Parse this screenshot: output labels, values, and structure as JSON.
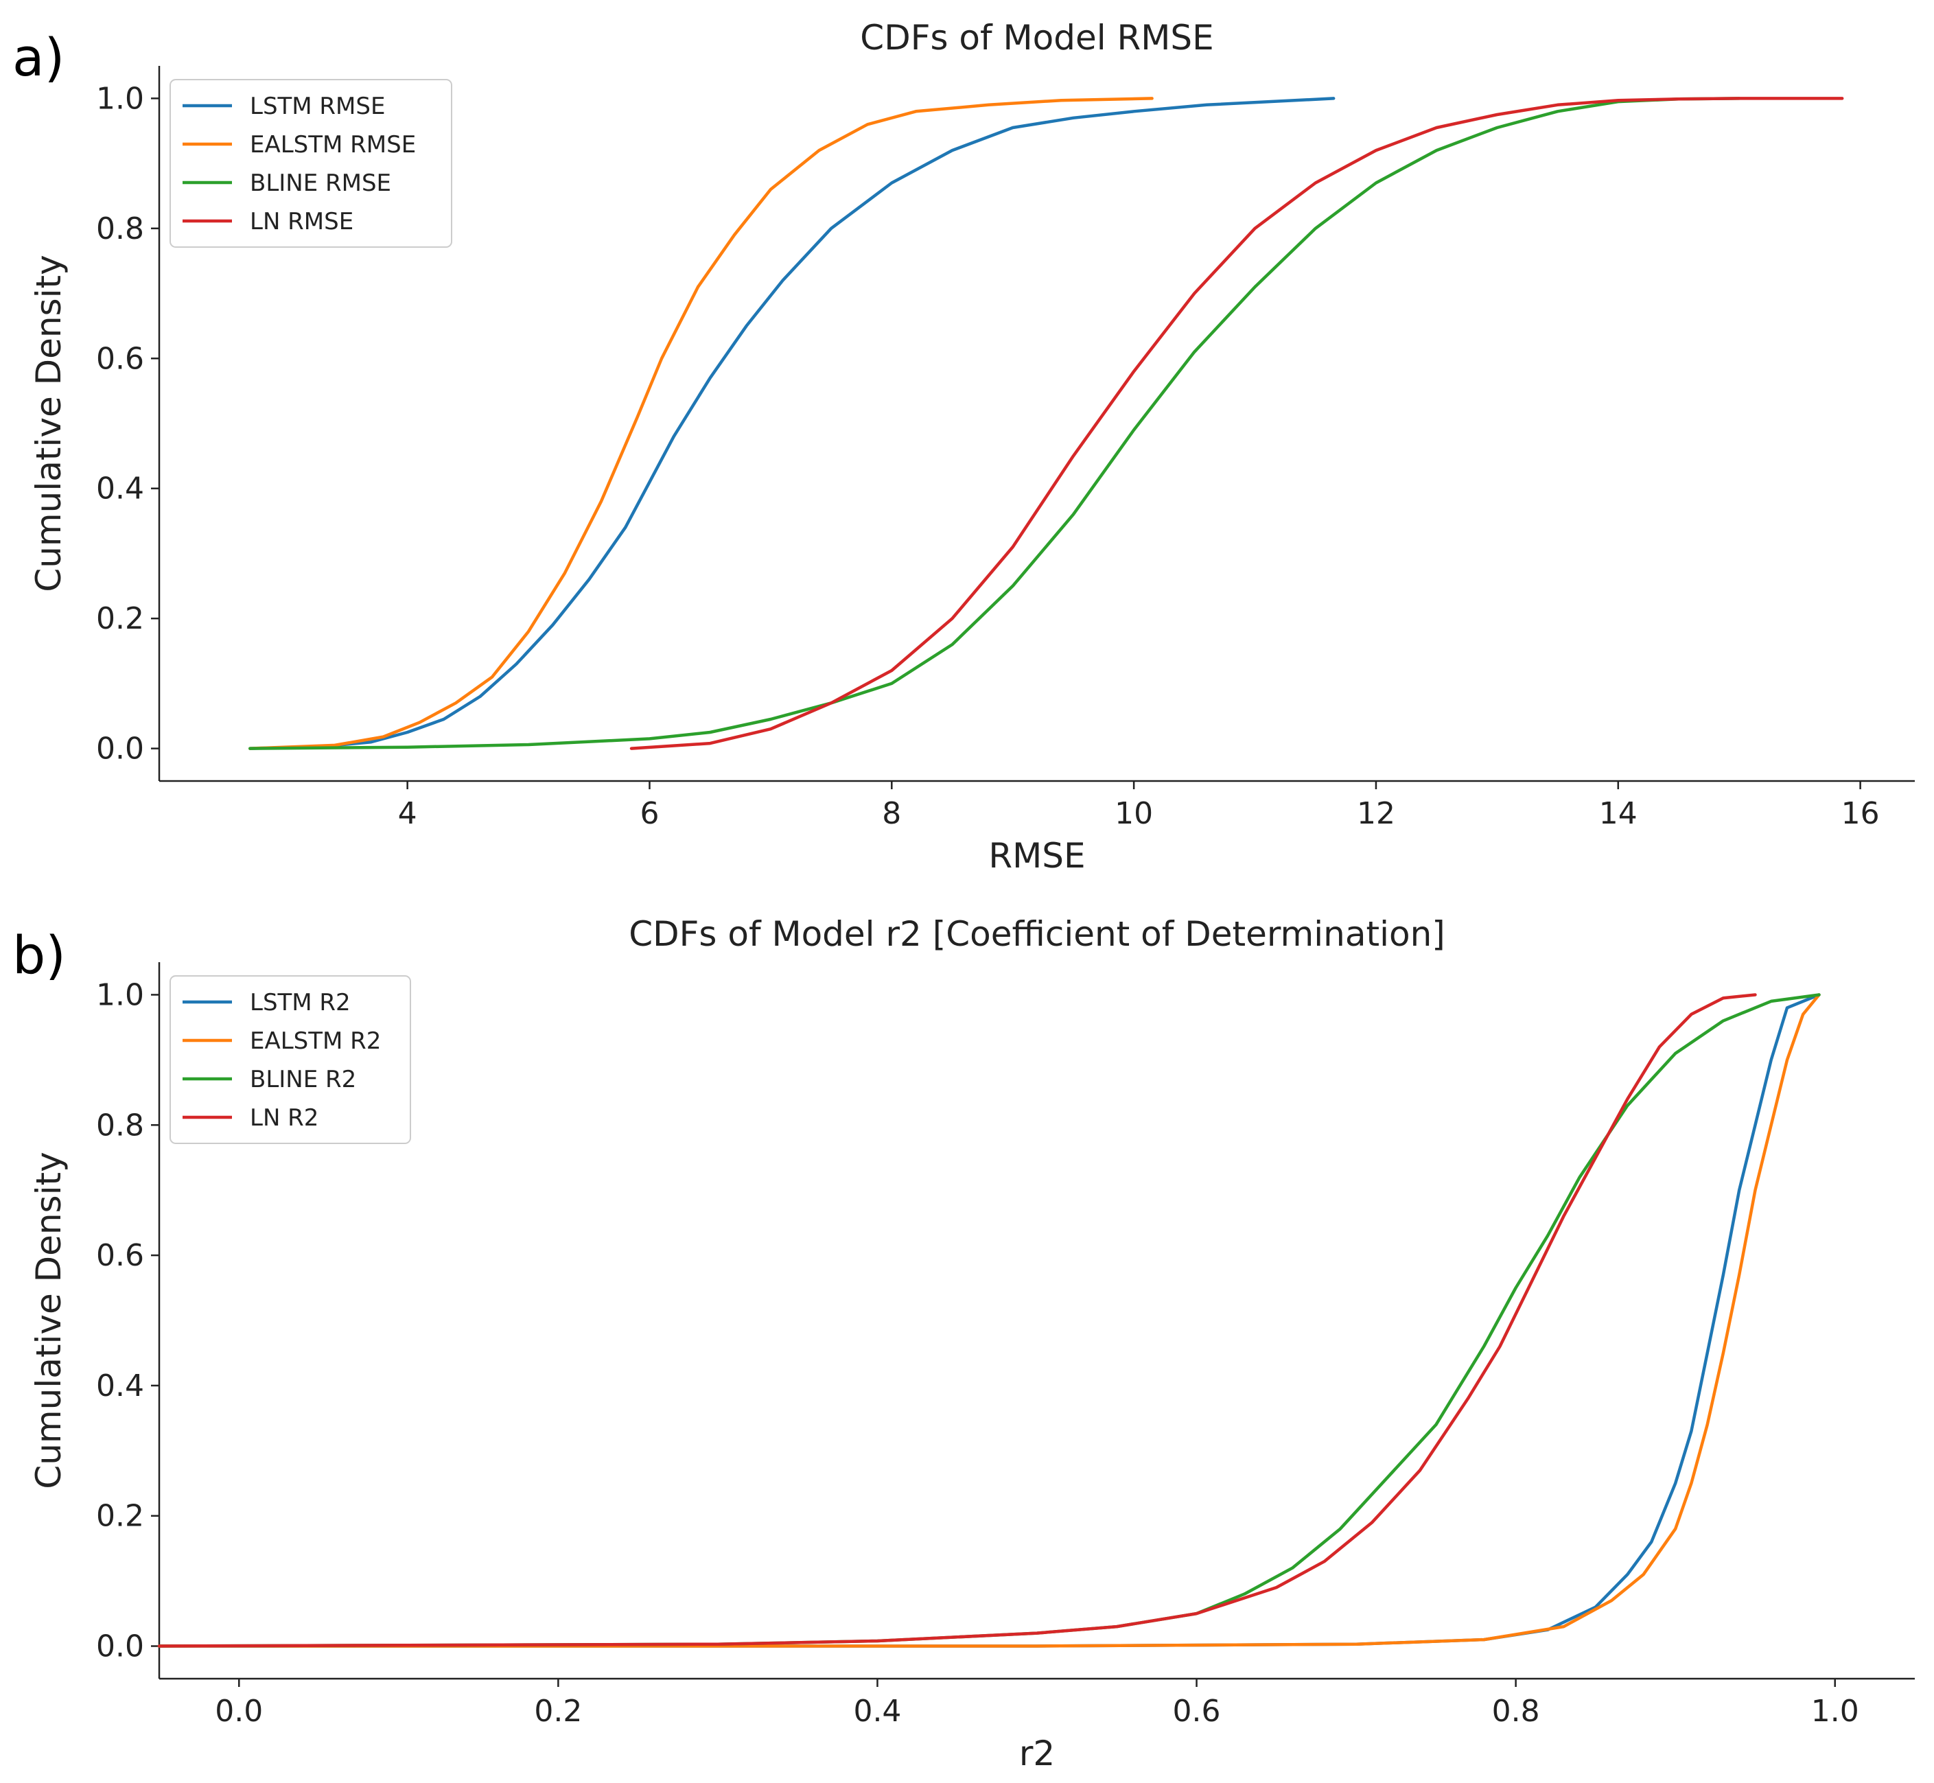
{
  "chart_data": [
    {
      "panel_label": "a)",
      "type": "line",
      "title": "CDFs of Model RMSE",
      "xlabel": "RMSE",
      "ylabel": "Cumulative Density",
      "xlim": [
        1.95,
        16.45
      ],
      "ylim": [
        -0.05,
        1.05
      ],
      "xticks": [
        4,
        6,
        8,
        10,
        12,
        14,
        16
      ],
      "xtick_labels": [
        "4",
        "6",
        "8",
        "10",
        "12",
        "14",
        "16"
      ],
      "yticks": [
        0.0,
        0.2,
        0.4,
        0.6,
        0.8,
        1.0
      ],
      "ytick_labels": [
        "0.0",
        "0.2",
        "0.4",
        "0.6",
        "0.8",
        "1.0"
      ],
      "legend_position": "upper-left",
      "series": [
        {
          "name": "LSTM RMSE",
          "color": "#1f77b4",
          "x": [
            2.7,
            3.3,
            3.7,
            4.0,
            4.3,
            4.6,
            4.9,
            5.2,
            5.5,
            5.8,
            6.0,
            6.2,
            6.5,
            6.8,
            7.1,
            7.5,
            8.0,
            8.5,
            9.0,
            9.5,
            10.0,
            10.6,
            11.65
          ],
          "y": [
            0.0,
            0.003,
            0.01,
            0.025,
            0.045,
            0.08,
            0.13,
            0.19,
            0.26,
            0.34,
            0.41,
            0.48,
            0.57,
            0.65,
            0.72,
            0.8,
            0.87,
            0.92,
            0.955,
            0.97,
            0.98,
            0.99,
            1.0
          ]
        },
        {
          "name": "EALSTM RMSE",
          "color": "#ff7f0e",
          "x": [
            2.7,
            3.4,
            3.8,
            4.1,
            4.4,
            4.7,
            5.0,
            5.3,
            5.6,
            5.9,
            6.1,
            6.4,
            6.7,
            7.0,
            7.4,
            7.8,
            8.2,
            8.8,
            9.4,
            10.15
          ],
          "y": [
            0.0,
            0.005,
            0.018,
            0.04,
            0.07,
            0.11,
            0.18,
            0.27,
            0.38,
            0.51,
            0.6,
            0.71,
            0.79,
            0.86,
            0.92,
            0.96,
            0.98,
            0.99,
            0.997,
            1.0
          ]
        },
        {
          "name": "BLINE RMSE",
          "color": "#2ca02c",
          "x": [
            2.7,
            4.0,
            5.0,
            6.0,
            6.5,
            7.0,
            7.5,
            8.0,
            8.5,
            9.0,
            9.5,
            10.0,
            10.5,
            11.0,
            11.5,
            12.0,
            12.5,
            13.0,
            13.5,
            14.0,
            14.5,
            15.0
          ],
          "y": [
            0.0,
            0.002,
            0.006,
            0.015,
            0.025,
            0.045,
            0.07,
            0.1,
            0.16,
            0.25,
            0.36,
            0.49,
            0.61,
            0.71,
            0.8,
            0.87,
            0.92,
            0.955,
            0.98,
            0.995,
            0.999,
            1.0
          ]
        },
        {
          "name": "LN RMSE",
          "color": "#d62728",
          "x": [
            5.85,
            6.5,
            7.0,
            7.5,
            8.0,
            8.5,
            9.0,
            9.5,
            10.0,
            10.5,
            11.0,
            11.5,
            12.0,
            12.5,
            13.0,
            13.5,
            14.0,
            14.5,
            15.0,
            15.5,
            15.85
          ],
          "y": [
            0.0,
            0.008,
            0.03,
            0.07,
            0.12,
            0.2,
            0.31,
            0.45,
            0.58,
            0.7,
            0.8,
            0.87,
            0.92,
            0.955,
            0.975,
            0.99,
            0.997,
            0.999,
            1.0,
            1.0,
            1.0
          ]
        }
      ]
    },
    {
      "panel_label": "b)",
      "type": "line",
      "title": "CDFs of Model r2 [Coefficient of Determination]",
      "xlabel": "r2",
      "ylabel": "Cumulative Density",
      "xlim": [
        -0.05,
        1.05
      ],
      "ylim": [
        -0.05,
        1.05
      ],
      "xticks": [
        0.0,
        0.2,
        0.4,
        0.6,
        0.8,
        1.0
      ],
      "xtick_labels": [
        "0.0",
        "0.2",
        "0.4",
        "0.6",
        "0.8",
        "1.0"
      ],
      "yticks": [
        0.0,
        0.2,
        0.4,
        0.6,
        0.8,
        1.0
      ],
      "ytick_labels": [
        "0.0",
        "0.2",
        "0.4",
        "0.6",
        "0.8",
        "1.0"
      ],
      "legend_position": "upper-left",
      "series": [
        {
          "name": "LSTM R2",
          "color": "#1f77b4",
          "x": [
            -0.05,
            0.5,
            0.7,
            0.78,
            0.82,
            0.85,
            0.87,
            0.885,
            0.9,
            0.91,
            0.92,
            0.93,
            0.94,
            0.95,
            0.96,
            0.97,
            0.99
          ],
          "y": [
            0.0,
            0.0,
            0.003,
            0.01,
            0.025,
            0.06,
            0.11,
            0.16,
            0.25,
            0.33,
            0.45,
            0.57,
            0.7,
            0.8,
            0.9,
            0.98,
            1.0
          ]
        },
        {
          "name": "EALSTM R2",
          "color": "#ff7f0e",
          "x": [
            -0.05,
            0.5,
            0.7,
            0.78,
            0.83,
            0.86,
            0.88,
            0.9,
            0.91,
            0.92,
            0.93,
            0.94,
            0.95,
            0.96,
            0.97,
            0.98,
            0.99
          ],
          "y": [
            0.0,
            0.0,
            0.003,
            0.01,
            0.03,
            0.07,
            0.11,
            0.18,
            0.25,
            0.34,
            0.45,
            0.57,
            0.7,
            0.8,
            0.9,
            0.97,
            1.0
          ]
        },
        {
          "name": "BLINE R2",
          "color": "#2ca02c",
          "x": [
            -0.05,
            0.3,
            0.4,
            0.5,
            0.55,
            0.6,
            0.63,
            0.66,
            0.69,
            0.72,
            0.75,
            0.78,
            0.8,
            0.82,
            0.84,
            0.87,
            0.9,
            0.93,
            0.96,
            0.99
          ],
          "y": [
            0.0,
            0.003,
            0.008,
            0.02,
            0.03,
            0.05,
            0.08,
            0.12,
            0.18,
            0.26,
            0.34,
            0.46,
            0.55,
            0.63,
            0.72,
            0.83,
            0.91,
            0.96,
            0.99,
            1.0
          ]
        },
        {
          "name": "LN R2",
          "color": "#d62728",
          "x": [
            -0.05,
            0.3,
            0.4,
            0.5,
            0.55,
            0.6,
            0.65,
            0.68,
            0.71,
            0.74,
            0.77,
            0.79,
            0.81,
            0.83,
            0.85,
            0.87,
            0.89,
            0.91,
            0.93,
            0.95
          ],
          "y": [
            0.0,
            0.003,
            0.008,
            0.02,
            0.03,
            0.05,
            0.09,
            0.13,
            0.19,
            0.27,
            0.38,
            0.46,
            0.56,
            0.66,
            0.75,
            0.84,
            0.92,
            0.97,
            0.995,
            1.0
          ]
        }
      ]
    }
  ]
}
